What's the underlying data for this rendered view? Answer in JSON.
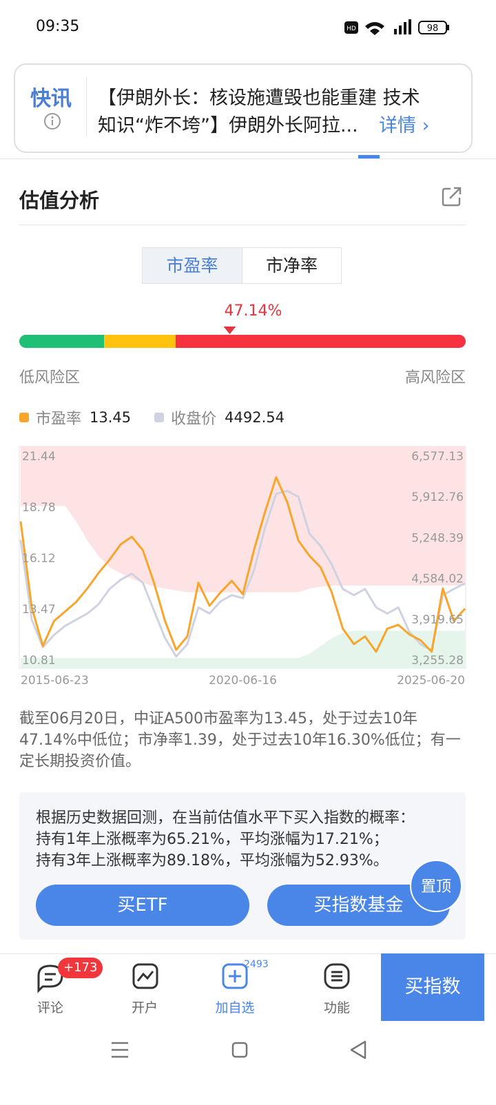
{
  "status_bar": {
    "time": "09:35",
    "battery": "98"
  },
  "news": {
    "tag": "快讯",
    "lines": [
      "【伊朗外长：核设施遭毁也能重建 技术",
      "知识“炸不垮”】伊朗外长阿拉..."
    ],
    "link": "详情"
  },
  "section": {
    "title": "估值分析",
    "tabs": [
      "市盈率",
      "市净率"
    ]
  },
  "gauge": {
    "value": 47.14,
    "value_label": "47.14%",
    "segments": [
      {
        "end": 19,
        "color": "#1fbf75"
      },
      {
        "end": 35,
        "color": "#ffc20e"
      },
      {
        "end": 100,
        "color": "#f7323f"
      }
    ],
    "low_label": "低风险区",
    "high_label": "高风险区"
  },
  "chart_data": {
    "type": "line",
    "categories": [
      "2015-06-23",
      null,
      null,
      null,
      null,
      null,
      null,
      null,
      null,
      null,
      null,
      null,
      null,
      null,
      null,
      null,
      null,
      null,
      null,
      null,
      "2020-06-16",
      null,
      null,
      null,
      null,
      null,
      null,
      null,
      null,
      null,
      null,
      null,
      null,
      null,
      null,
      null,
      null,
      null,
      null,
      null,
      "2025-06-20"
    ],
    "series": [
      {
        "name": "市盈率",
        "latest": 13.45,
        "color": "#f8a52c",
        "axis": "y",
        "values": [
          18.0,
          13.5,
          11.5,
          12.8,
          13.3,
          13.8,
          14.5,
          15.3,
          16.0,
          16.8,
          17.2,
          16.5,
          14.8,
          12.8,
          11.3,
          12.0,
          14.8,
          13.6,
          14.3,
          14.9,
          14.2,
          16.5,
          18.5,
          20.3,
          19.0,
          17.0,
          16.2,
          15.6,
          14.3,
          12.4,
          11.6,
          12.0,
          11.2,
          12.4,
          12.6,
          12.1,
          11.8,
          11.2,
          14.5,
          12.8,
          13.45
        ]
      },
      {
        "name": "收盘价",
        "latest": 4492.54,
        "color": "#cfd2e0",
        "axis": "y2",
        "values": [
          5200,
          3900,
          3450,
          3650,
          3800,
          3900,
          4000,
          4150,
          4400,
          4550,
          4650,
          4500,
          4050,
          3600,
          3300,
          3500,
          4100,
          4000,
          4200,
          4300,
          4250,
          4700,
          5400,
          5950,
          6000,
          5900,
          5300,
          5100,
          4800,
          4400,
          4300,
          4400,
          4100,
          4000,
          4100,
          3700,
          3500,
          3400,
          4300,
          4400,
          4492.54
        ]
      }
    ],
    "high_zone": [
      18.8,
      18.8,
      18.8,
      18.8,
      18.8,
      18.0,
      17.0,
      16.2,
      15.6,
      15.3,
      15.0,
      14.8,
      14.6,
      14.5,
      14.4,
      14.3,
      14.3,
      14.3,
      14.3,
      14.3,
      14.3,
      14.3,
      14.3,
      14.3,
      14.3,
      14.3,
      14.5,
      14.6,
      14.65,
      14.65,
      14.65,
      14.65,
      14.65,
      14.65,
      14.65,
      14.65,
      14.65,
      14.65,
      14.65,
      14.65,
      14.65
    ],
    "low_zone": [
      10.87,
      10.87,
      10.87,
      10.87,
      10.87,
      10.87,
      10.87,
      10.87,
      10.87,
      10.87,
      10.87,
      10.87,
      10.87,
      10.87,
      10.87,
      10.87,
      10.87,
      10.87,
      10.87,
      10.87,
      10.87,
      10.87,
      10.87,
      10.87,
      10.87,
      10.87,
      11.1,
      11.5,
      11.9,
      12.2,
      12.3,
      12.3,
      12.3,
      12.3,
      12.3,
      12.3,
      12.3,
      12.3,
      12.3,
      12.3,
      12.3
    ],
    "high_color": "#fde3e3",
    "low_color": "#e6f5ec",
    "ylim": [
      10.34,
      21.91
    ],
    "yticks": [
      21.44,
      18.78,
      16.12,
      13.47,
      10.81
    ],
    "y2lim": [
      3109,
      6723
    ],
    "y2ticks": [
      {
        "value": 6577.13,
        "label": "6,577.13"
      },
      {
        "value": 5912.76,
        "label": "5,912.76"
      },
      {
        "value": 5248.39,
        "label": "5,248.39"
      },
      {
        "value": 4584.02,
        "label": "4,584.02"
      },
      {
        "value": 3919.65,
        "label": "3,919.65"
      },
      {
        "value": 3255.28,
        "label": "3,255.28"
      }
    ]
  },
  "summary": "截至06月20日，中证A500市盈率为13.45，处于过去10年47.14%中低位；市净率1.39，处于过去10年16.30%低位；有一定长期投资价值。",
  "backtest": {
    "lines": [
      "根据历史数据回测，在当前估值水平下买入指数的概率：",
      "持有1年上涨概率为65.21%，平均涨幅为17.21%；",
      "持有3年上涨概率为89.18%，平均涨幅为52.93%。"
    ],
    "buttons": [
      "买ETF",
      "买指数基金"
    ],
    "top": "置顶"
  },
  "bottom_nav": {
    "items": [
      {
        "label": "评论",
        "badge": "+173"
      },
      {
        "label": "开户"
      },
      {
        "label": "加自选",
        "badge": "2493"
      },
      {
        "label": "功能"
      }
    ],
    "cta": "买指数"
  }
}
